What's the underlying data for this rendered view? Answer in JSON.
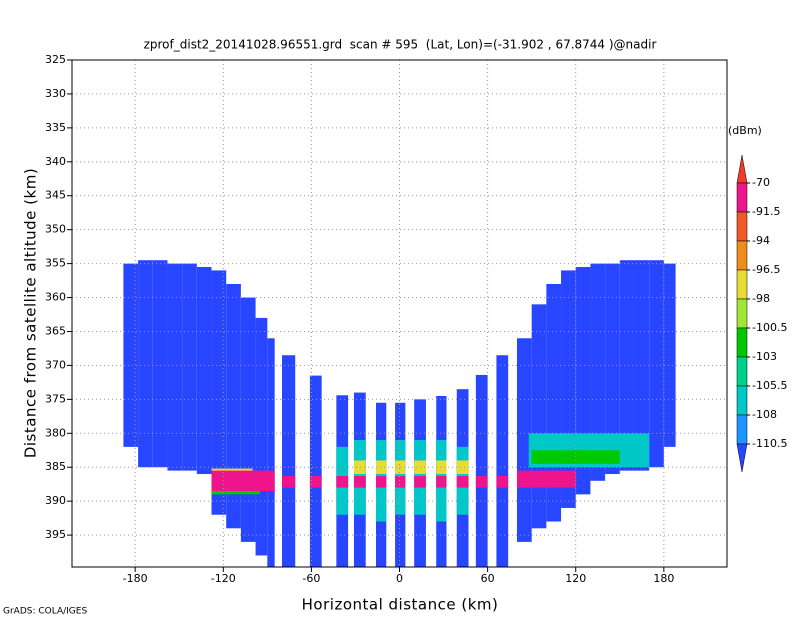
{
  "chart_data": {
    "type": "field",
    "title": "zprof_dist2_20141028.96551.grd  scan # 595  (Lat, Lon)=(-31.902 , 67.8744 )@nadir",
    "x_label": "Horizontal distance (km)",
    "y_label": "Distance from satellite altitude (km)",
    "footer": "GrADS: COLA/IGES",
    "xlim": [
      -223,
      223
    ],
    "xticks": [
      -180,
      -120,
      -60,
      0,
      60,
      120,
      180
    ],
    "ylim": [
      325,
      399.7
    ],
    "yticks": [
      325,
      330,
      335,
      340,
      345,
      350,
      355,
      360,
      365,
      370,
      375,
      380,
      385,
      390,
      395
    ],
    "y_inverted": true,
    "grid": true,
    "colorbar": {
      "unit": "(dBm)",
      "levels": [
        -70,
        -91.5,
        -94,
        -96.5,
        -98,
        -100.5,
        -103,
        -105.5,
        -108,
        -110.5
      ],
      "colors": [
        "#f03c28",
        "#f0148c",
        "#f05a28",
        "#f08c1e",
        "#e6dc32",
        "#a0e632",
        "#00c800",
        "#00d28c",
        "#00c8c8",
        "#1e96ff",
        "#2846ff"
      ]
    },
    "cells": [
      [
        -188,
        -178,
        355,
        382,
        -111
      ],
      [
        -178,
        -168,
        354.5,
        385,
        -111
      ],
      [
        -168,
        -158,
        354.5,
        385,
        -111
      ],
      [
        -158,
        -148,
        355,
        385.5,
        -111
      ],
      [
        -148,
        -138,
        355,
        385.5,
        -111
      ],
      [
        -138,
        -128,
        355.5,
        386,
        -111
      ],
      [
        -128,
        -118,
        356,
        392,
        -111
      ],
      [
        -118,
        -108,
        358,
        394,
        -111
      ],
      [
        -108,
        -98,
        360,
        396,
        -111
      ],
      [
        -98,
        -90,
        363,
        398,
        -111
      ],
      [
        -90,
        -85,
        366,
        399.7,
        -111
      ],
      [
        80,
        90,
        366,
        396,
        -111
      ],
      [
        90,
        100,
        361,
        394,
        -111
      ],
      [
        100,
        110,
        358,
        393,
        -111
      ],
      [
        110,
        120,
        356,
        391,
        -111
      ],
      [
        120,
        130,
        355.5,
        389,
        -111
      ],
      [
        130,
        140,
        355,
        387,
        -111
      ],
      [
        140,
        150,
        355,
        386,
        -111
      ],
      [
        150,
        160,
        354.5,
        385.5,
        -111
      ],
      [
        160,
        170,
        354.5,
        385.5,
        -111
      ],
      [
        170,
        180,
        354.5,
        385,
        -111
      ],
      [
        180,
        188,
        355,
        382,
        -111
      ],
      [
        -80,
        -71,
        368.5,
        399.7,
        -111
      ],
      [
        -61,
        -53,
        371.5,
        399.7,
        -111
      ],
      [
        -43,
        -35,
        374.4,
        399.7,
        -111
      ],
      [
        -31,
        -23,
        374,
        399.7,
        -111
      ],
      [
        -16,
        -9,
        375.5,
        399.7,
        -111
      ],
      [
        -3,
        4,
        375.5,
        399.7,
        -111
      ],
      [
        10,
        18,
        375,
        399.7,
        -111
      ],
      [
        25,
        32,
        374.5,
        399.7,
        -111
      ],
      [
        39,
        47,
        373.5,
        399.7,
        -111
      ],
      [
        52,
        60,
        371.4,
        399.7,
        -111
      ],
      [
        66,
        74,
        368.5,
        399.7,
        -111
      ],
      [
        -43,
        -35,
        382,
        392,
        -107
      ],
      [
        -31,
        -23,
        381,
        392,
        -107
      ],
      [
        -16,
        -9,
        381,
        393,
        -107
      ],
      [
        -3,
        4,
        381,
        392,
        -107
      ],
      [
        10,
        18,
        381,
        392,
        -107
      ],
      [
        25,
        32,
        381,
        393,
        -107
      ],
      [
        39,
        47,
        382,
        392,
        -107
      ],
      [
        -31,
        -23,
        384,
        386,
        -97
      ],
      [
        -16,
        -9,
        384,
        386,
        -97
      ],
      [
        -3,
        4,
        384,
        386,
        -97
      ],
      [
        10,
        18,
        384,
        386,
        -97
      ],
      [
        25,
        32,
        384,
        386,
        -97
      ],
      [
        39,
        47,
        384,
        386,
        -97
      ],
      [
        88,
        170,
        380,
        385,
        -107
      ],
      [
        90,
        150,
        382.5,
        384.5,
        -102
      ],
      [
        -128,
        -95,
        388.5,
        389,
        -102
      ],
      [
        -128,
        -100,
        385.2,
        385.6,
        -97
      ],
      [
        -128,
        -85,
        385.5,
        388.5,
        -80
      ],
      [
        80,
        120,
        385.5,
        388,
        -80
      ],
      [
        -80,
        -71,
        386.3,
        388,
        -80
      ],
      [
        -61,
        -53,
        386.3,
        388,
        -80
      ],
      [
        -43,
        -35,
        386.3,
        388,
        -80
      ],
      [
        -31,
        -23,
        386.3,
        388,
        -80
      ],
      [
        -16,
        -9,
        386.3,
        388,
        -80
      ],
      [
        -3,
        4,
        386.3,
        388,
        -80
      ],
      [
        10,
        18,
        386.3,
        388,
        -80
      ],
      [
        25,
        32,
        386.3,
        388,
        -80
      ],
      [
        39,
        47,
        386.3,
        388,
        -80
      ],
      [
        52,
        60,
        386.3,
        388,
        -80
      ],
      [
        66,
        74,
        386.3,
        388,
        -80
      ]
    ]
  }
}
